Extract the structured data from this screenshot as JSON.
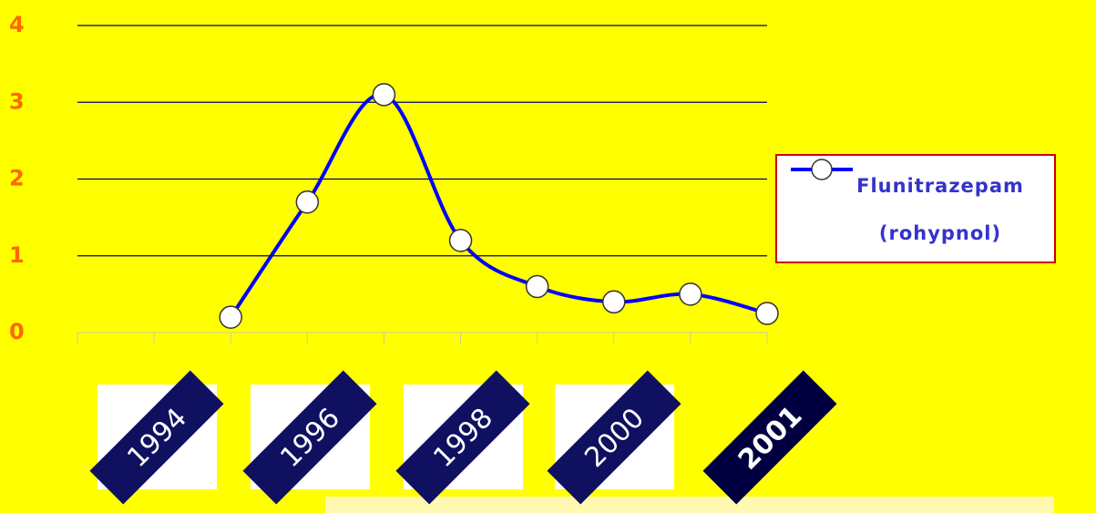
{
  "chart_data": {
    "type": "line",
    "categories": [
      null,
      null,
      null,
      null,
      null,
      null,
      null,
      null,
      null,
      null
    ],
    "series": [
      {
        "name": "Flunitrazepam (rohypnol)",
        "color": "#0000ff",
        "values": [
          null,
          null,
          0.2,
          1.7,
          3.1,
          1.2,
          0.6,
          0.4,
          0.5,
          0.25
        ]
      }
    ],
    "ylim": [
      0,
      4
    ],
    "yticks": [
      0,
      1,
      2,
      3,
      4
    ],
    "grid": true,
    "legend": "right",
    "year_badges": [
      "1994",
      "1996",
      "1998",
      "2000",
      "2001"
    ]
  }
}
